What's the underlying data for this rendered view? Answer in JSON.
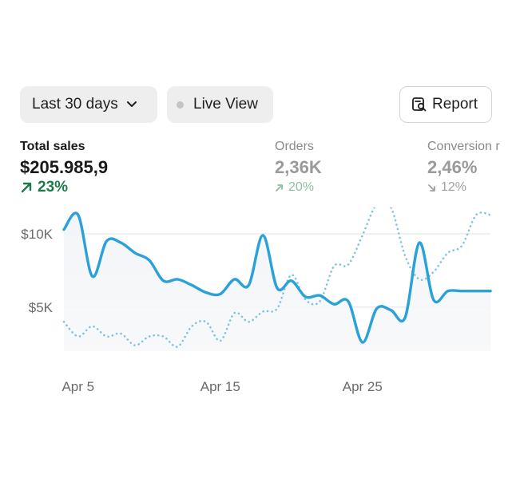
{
  "toolbar": {
    "date_range_label": "Last 30 days",
    "live_view_label": "Live View",
    "report_label": "Report"
  },
  "metrics": [
    {
      "label": "Total sales",
      "value": "$205.985,9",
      "change": "23%",
      "direction": "up"
    },
    {
      "label": "Orders",
      "value": "2,36K",
      "change": "20%",
      "direction": "up"
    },
    {
      "label": "Conversion r",
      "value": "2,46%",
      "change": "12%",
      "direction": "down"
    }
  ],
  "colors": {
    "primary_line": "#2aa1d8",
    "comparison_line": "#7fc3e0",
    "positive": "#1e7a4a",
    "gridline": "#e0e0e0"
  },
  "chart_data": {
    "type": "line",
    "x_ticks": [
      "Apr 5",
      "Apr 15",
      "Apr 25"
    ],
    "y_ticks": [
      "$10K",
      "$5K"
    ],
    "y_tick_values": [
      10000,
      5000
    ],
    "ylim": [
      2000,
      11800
    ],
    "grid": true,
    "series": [
      {
        "style": "solid",
        "x": [
          "Apr 4",
          "Apr 5",
          "Apr 6",
          "Apr 7",
          "Apr 8",
          "Apr 9",
          "Apr 10",
          "Apr 11",
          "Apr 12",
          "Apr 13",
          "Apr 14",
          "Apr 15",
          "Apr 16",
          "Apr 17",
          "Apr 18",
          "Apr 19",
          "Apr 20",
          "Apr 21",
          "Apr 22",
          "Apr 23",
          "Apr 24",
          "Apr 25",
          "Apr 26",
          "Apr 27",
          "Apr 28",
          "Apr 29",
          "Apr 30",
          "May 1",
          "May 2",
          "May 3",
          "May 4"
        ],
        "values": [
          10300,
          11300,
          7100,
          9500,
          9400,
          8700,
          8200,
          6800,
          6900,
          6500,
          6000,
          5900,
          6900,
          6500,
          9900,
          6300,
          6800,
          5700,
          5800,
          5200,
          5400,
          2600,
          4900,
          4800,
          4300,
          9400,
          5500,
          6100,
          6100,
          6100,
          6100
        ]
      },
      {
        "style": "dotted",
        "x": [
          "Apr 4",
          "Apr 5",
          "Apr 6",
          "Apr 7",
          "Apr 8",
          "Apr 9",
          "Apr 10",
          "Apr 11",
          "Apr 12",
          "Apr 13",
          "Apr 14",
          "Apr 15",
          "Apr 16",
          "Apr 17",
          "Apr 18",
          "Apr 19",
          "Apr 20",
          "Apr 21",
          "Apr 22",
          "Apr 23",
          "Apr 24",
          "Apr 25",
          "Apr 26",
          "Apr 27",
          "Apr 28",
          "Apr 29",
          "Apr 30",
          "May 1",
          "May 2",
          "May 3",
          "May 4"
        ],
        "values": [
          4000,
          3000,
          3700,
          3000,
          3200,
          2400,
          3000,
          3000,
          2300,
          3700,
          4000,
          2700,
          4600,
          4000,
          4700,
          4900,
          7200,
          5500,
          5400,
          7800,
          7900,
          9900,
          12000,
          11800,
          8500,
          6900,
          7400,
          8700,
          9200,
          11300,
          11300
        ]
      }
    ]
  }
}
